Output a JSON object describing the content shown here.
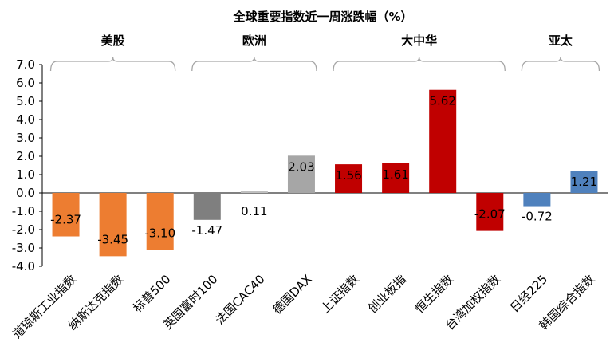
{
  "chart_data": {
    "type": "bar",
    "title": "全球重要指数近一周涨跌幅（%）",
    "xlabel": "",
    "ylabel": "",
    "ylim": [
      -4.0,
      7.0
    ],
    "yticks": [
      "7.0",
      "6.0",
      "5.0",
      "4.0",
      "3.0",
      "2.0",
      "1.0",
      "0.0",
      "-1.0",
      "-2.0",
      "-3.0",
      "-4.0"
    ],
    "grid": false,
    "legend": "none",
    "categories": [
      "道琼斯工业指数",
      "纳斯达克指数",
      "标普500",
      "英国富时100",
      "法国CAC40",
      "德国DAX",
      "上证指数",
      "创业板指",
      "恒生指数",
      "台湾加权指数",
      "日经225",
      "韩国综合指数"
    ],
    "values": [
      -2.37,
      -3.45,
      -3.1,
      -1.47,
      0.11,
      2.03,
      1.56,
      1.61,
      5.62,
      -2.07,
      -0.72,
      1.21
    ],
    "data_labels": [
      "-2.37",
      "-3.45",
      "-3.10",
      "-1.47",
      "0.11",
      "2.03",
      "1.56",
      "1.61",
      "5.62",
      "-2.07",
      "-0.72",
      "1.21"
    ],
    "groups": [
      {
        "label": "美股",
        "start": 0,
        "end": 2,
        "color": "#ED7D31"
      },
      {
        "label": "欧洲",
        "start": 3,
        "end": 5
      },
      {
        "label": "大中华",
        "start": 6,
        "end": 9,
        "color": "#C00000"
      },
      {
        "label": "亚太",
        "start": 10,
        "end": 11,
        "color": "#4F81BD"
      }
    ],
    "bar_colors": [
      "#ED7D31",
      "#ED7D31",
      "#ED7D31",
      "#7F7F7F",
      "#BFBFBF",
      "#A6A6A6",
      "#C00000",
      "#C00000",
      "#C00000",
      "#C00000",
      "#4F81BD",
      "#4F81BD"
    ]
  }
}
